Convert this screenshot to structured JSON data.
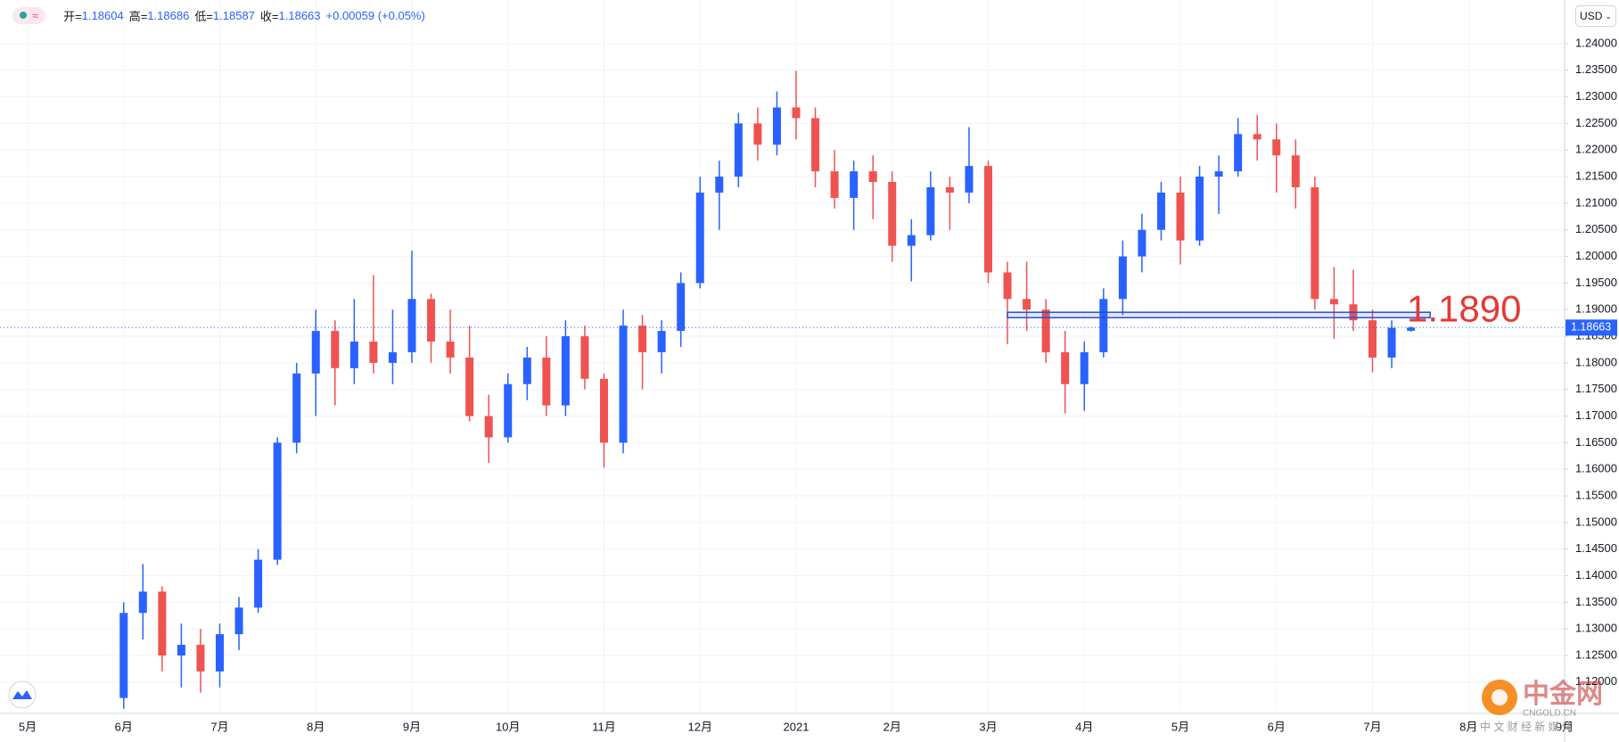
{
  "chart_data": {
    "type": "candlestick",
    "ohlc_labels": [
      "开=",
      "高=",
      "低=",
      "收="
    ],
    "change": "+0.00059 (+0.05%)",
    "currency": "USD",
    "categories": [
      "5月",
      null,
      null,
      null,
      null,
      "6月",
      null,
      null,
      null,
      null,
      "7月",
      null,
      null,
      null,
      null,
      "8月",
      null,
      null,
      null,
      null,
      "9月",
      null,
      null,
      null,
      null,
      "10月",
      null,
      null,
      null,
      null,
      "11月",
      null,
      null,
      null,
      null,
      "12月",
      null,
      null,
      null,
      null,
      "2021",
      null,
      null,
      null,
      null,
      "2月",
      null,
      null,
      null,
      null,
      "3月",
      null,
      null,
      null,
      null,
      "4月",
      null,
      null,
      null,
      null,
      "5月",
      null,
      null,
      null,
      null,
      "6月",
      null,
      null,
      null,
      null,
      "7月",
      null,
      null,
      null,
      null,
      "8月",
      null,
      null,
      null,
      null,
      "9月"
    ],
    "open": [
      null,
      null,
      null,
      null,
      null,
      1.117,
      1.133,
      1.137,
      1.125,
      1.127,
      1.122,
      1.129,
      1.134,
      1.143,
      1.165,
      1.178,
      1.186,
      1.179,
      1.184,
      1.18,
      1.182,
      1.192,
      1.184,
      1.181,
      1.17,
      1.166,
      1.176,
      1.181,
      1.172,
      1.185,
      1.177,
      1.165,
      1.187,
      1.182,
      1.186,
      1.195,
      1.212,
      1.215,
      1.225,
      1.221,
      1.228,
      1.226,
      1.216,
      1.211,
      1.216,
      1.214,
      1.202,
      1.204,
      1.213,
      1.212,
      1.217,
      1.197,
      1.192,
      1.19,
      1.182,
      1.176,
      1.182,
      1.192,
      1.2,
      1.205,
      1.212,
      1.203,
      1.215,
      1.216,
      1.223,
      1.222,
      1.219,
      1.213,
      1.192,
      1.191,
      1.188,
      1.181,
      1.18604,
      null,
      null,
      null,
      null,
      null,
      null,
      null,
      null
    ],
    "high": [
      null,
      null,
      null,
      null,
      null,
      1.135,
      1.1422,
      1.138,
      1.131,
      1.13,
      1.131,
      1.136,
      1.145,
      1.166,
      1.18,
      1.19,
      1.188,
      1.192,
      1.1965,
      1.19,
      1.2011,
      1.193,
      1.19,
      1.187,
      1.174,
      1.178,
      1.183,
      1.185,
      1.188,
      1.187,
      1.178,
      1.19,
      1.189,
      1.188,
      1.197,
      1.215,
      1.218,
      1.227,
      1.228,
      1.231,
      1.2349,
      1.228,
      1.22,
      1.218,
      1.219,
      1.216,
      1.207,
      1.216,
      1.215,
      1.2243,
      1.218,
      1.199,
      1.199,
      1.192,
      1.186,
      1.184,
      1.194,
      1.203,
      1.208,
      1.214,
      1.215,
      1.217,
      1.219,
      1.226,
      1.2266,
      1.225,
      1.222,
      1.215,
      1.198,
      1.1975,
      1.19,
      1.188,
      1.18686,
      null,
      null,
      null,
      null,
      null,
      null,
      null,
      null
    ],
    "low": [
      null,
      null,
      null,
      null,
      null,
      1.115,
      1.128,
      1.122,
      1.119,
      1.118,
      1.119,
      1.126,
      1.133,
      1.142,
      1.163,
      1.17,
      1.172,
      1.176,
      1.178,
      1.176,
      1.18,
      1.18,
      1.178,
      1.169,
      1.1612,
      1.165,
      1.173,
      1.17,
      1.17,
      1.175,
      1.1603,
      1.163,
      1.175,
      1.178,
      1.183,
      1.194,
      1.205,
      1.213,
      1.218,
      1.219,
      1.222,
      1.213,
      1.209,
      1.205,
      1.207,
      1.199,
      1.1953,
      1.203,
      1.205,
      1.21,
      1.195,
      1.1835,
      1.186,
      1.18,
      1.1705,
      1.171,
      1.181,
      1.189,
      1.197,
      1.203,
      1.1985,
      1.202,
      1.208,
      1.215,
      1.218,
      1.212,
      1.209,
      1.19,
      1.1845,
      1.186,
      1.1782,
      1.179,
      1.18587,
      null,
      null,
      null,
      null,
      null,
      null,
      null,
      null
    ],
    "close": [
      null,
      null,
      null,
      null,
      null,
      1.133,
      1.137,
      1.125,
      1.127,
      1.122,
      1.129,
      1.134,
      1.143,
      1.165,
      1.178,
      1.186,
      1.179,
      1.184,
      1.18,
      1.182,
      1.192,
      1.184,
      1.181,
      1.17,
      1.166,
      1.176,
      1.181,
      1.172,
      1.185,
      1.177,
      1.165,
      1.187,
      1.182,
      1.186,
      1.195,
      1.212,
      1.215,
      1.225,
      1.221,
      1.228,
      1.226,
      1.216,
      1.211,
      1.216,
      1.214,
      1.202,
      1.204,
      1.213,
      1.212,
      1.217,
      1.197,
      1.192,
      1.19,
      1.182,
      1.176,
      1.182,
      1.192,
      1.2,
      1.205,
      1.212,
      1.203,
      1.215,
      1.216,
      1.223,
      1.222,
      1.219,
      1.213,
      1.192,
      1.191,
      1.188,
      1.181,
      1.1866,
      1.18663,
      null,
      null,
      null,
      null,
      null,
      null,
      null,
      null
    ],
    "up_color": "#2962ff",
    "down_color": "#ef5350",
    "ylim": [
      1.1141,
      1.2482
    ],
    "yticks": [
      {
        "value": 1.12,
        "label": "1.12000"
      },
      {
        "value": 1.125,
        "label": "1.12500"
      },
      {
        "value": 1.13,
        "label": "1.13000"
      },
      {
        "value": 1.135,
        "label": "1.13500"
      },
      {
        "value": 1.14,
        "label": "1.14000"
      },
      {
        "value": 1.145,
        "label": "1.14500"
      },
      {
        "value": 1.15,
        "label": "1.15000"
      },
      {
        "value": 1.155,
        "label": "1.15500"
      },
      {
        "value": 1.16,
        "label": "1.16000"
      },
      {
        "value": 1.165,
        "label": "1.16500"
      },
      {
        "value": 1.17,
        "label": "1.17000"
      },
      {
        "value": 1.175,
        "label": "1.17500"
      },
      {
        "value": 1.18,
        "label": "1.18000"
      },
      {
        "value": 1.185,
        "label": "1.18500"
      },
      {
        "value": 1.19,
        "label": "1.19000"
      },
      {
        "value": 1.195,
        "label": "1.19500"
      },
      {
        "value": 1.2,
        "label": "1.20000"
      },
      {
        "value": 1.205,
        "label": "1.20500"
      },
      {
        "value": 1.21,
        "label": "1.21000"
      },
      {
        "value": 1.215,
        "label": "1.21500"
      },
      {
        "value": 1.22,
        "label": "1.22000"
      },
      {
        "value": 1.225,
        "label": "1.22500"
      },
      {
        "value": 1.23,
        "label": "1.23000"
      },
      {
        "value": 1.235,
        "label": "1.23500"
      },
      {
        "value": 1.24,
        "label": "1.24000"
      }
    ],
    "grid": true,
    "annotations": [
      {
        "value": 1.189,
        "label": "1.1890",
        "color": "#e53935"
      }
    ],
    "watermark": {
      "title": "中金网",
      "site": "CNGOLD.CN",
      "slogan": "中 文 财 经 新 媒 体"
    }
  }
}
